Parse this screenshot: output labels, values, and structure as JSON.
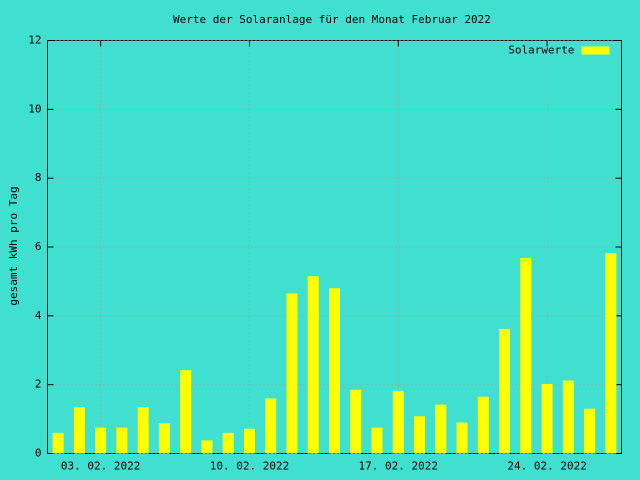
{
  "chart_data": {
    "type": "bar",
    "title": "Werte der Solaranlage für den Monat Februar 2022",
    "y_label": "gesamt kWh pro Tag",
    "categories": [
      null,
      null,
      "03. 02. 2022",
      null,
      null,
      null,
      null,
      null,
      null,
      "10. 02. 2022",
      null,
      null,
      null,
      null,
      null,
      null,
      "17. 02. 2022",
      null,
      null,
      null,
      null,
      null,
      null,
      "24. 02. 2022",
      null,
      null,
      null
    ],
    "series": [
      {
        "name": "Solarwerte",
        "color": "#ffff00",
        "values": [
          0.6,
          1.35,
          0.75,
          0.75,
          1.35,
          0.88,
          2.42,
          0.38,
          0.6,
          0.72,
          1.6,
          4.65,
          5.15,
          4.8,
          1.85,
          0.75,
          1.82,
          1.08,
          1.42,
          0.9,
          1.65,
          3.62,
          5.68,
          2.02,
          2.12,
          1.3,
          5.82
        ]
      }
    ],
    "ylim": [
      0,
      12
    ],
    "yticks": [
      0,
      2,
      4,
      6,
      8,
      10,
      12
    ],
    "grid": true,
    "legend": "top-right"
  }
}
